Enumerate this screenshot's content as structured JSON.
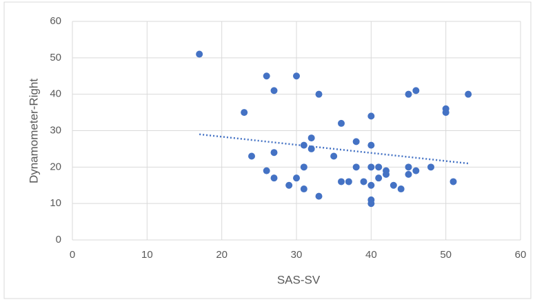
{
  "chart_data": {
    "type": "scatter",
    "x_label": "SAS-SV",
    "y_label": "Dynamometer-Right",
    "color": "#4472c4",
    "x": [
      17,
      26,
      30,
      27,
      33,
      46,
      45,
      53,
      50,
      50,
      23,
      40,
      36,
      38,
      32,
      31,
      32,
      40,
      27,
      24,
      35,
      26,
      31,
      38,
      40,
      41,
      42,
      42,
      45,
      45,
      46,
      48,
      27,
      30,
      41,
      36,
      37,
      39,
      40,
      43,
      51,
      29,
      31,
      44,
      33,
      40,
      40
    ],
    "values": [
      51,
      45,
      45,
      41,
      40,
      41,
      40,
      40,
      36,
      35,
      35,
      34,
      32,
      27,
      28,
      26,
      25,
      26,
      24,
      23,
      23,
      19,
      20,
      20,
      20,
      20,
      19,
      18,
      20,
      18,
      19,
      20,
      17,
      17,
      17,
      16,
      16,
      16,
      15,
      15,
      16,
      15,
      14,
      14,
      12,
      11,
      10
    ],
    "trendline": {
      "x": [
        17,
        53
      ],
      "values": [
        29,
        21
      ],
      "style": "dotted"
    },
    "xlim": [
      0,
      60
    ],
    "xticks": [
      0,
      10,
      20,
      30,
      40,
      50,
      60
    ],
    "ylim": [
      0,
      60
    ],
    "yticks": [
      0,
      10,
      20,
      30,
      40,
      50,
      60
    ],
    "grid": true
  }
}
